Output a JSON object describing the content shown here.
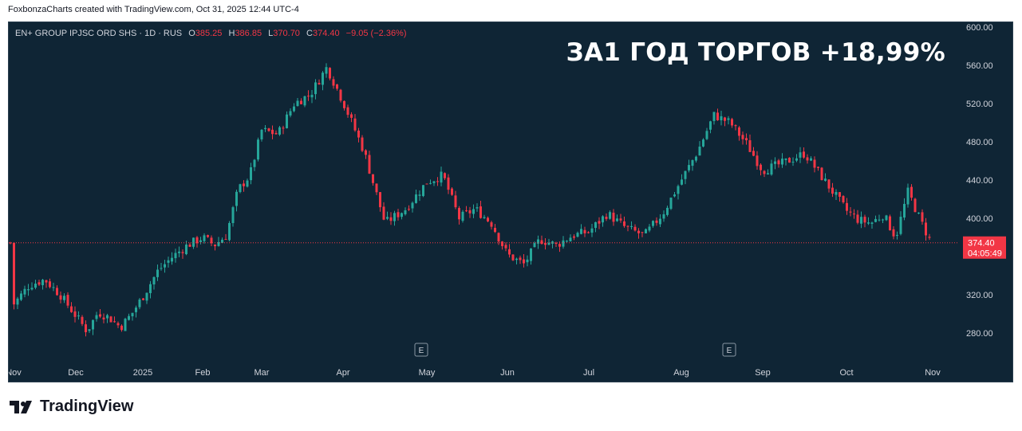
{
  "header": {
    "attribution": "FoxbonzaCharts created with TradingView.com, Oct 31, 2025 12:44 UTC-4"
  },
  "legend": {
    "symbol": "EN+ GROUP IPJSC ORD SHS · 1D · RUS",
    "open_key": "O",
    "open": "385.25",
    "high_key": "H",
    "high": "386.85",
    "low_key": "L",
    "low": "370.70",
    "close_key": "C",
    "close": "374.40",
    "change": "−9.05 (−2.36%)"
  },
  "headline": "ЗА1 ГОД ТОРГОВ +18,99%",
  "price_label": {
    "price": "374.40",
    "countdown": "04:05:49"
  },
  "earnings_marker": "E",
  "footer": {
    "brand": "TradingView"
  },
  "colors": {
    "background": "#0f2535",
    "up": "#26a69a",
    "down": "#f23645",
    "axis_text": "#d1d4dc"
  },
  "chart_data": {
    "type": "candlestick",
    "y_axis": {
      "ticks": [
        "600.00",
        "560.00",
        "520.00",
        "480.00",
        "440.00",
        "400.00",
        "320.00",
        "280.00"
      ],
      "ylim": [
        260,
        600
      ]
    },
    "x_axis": {
      "labels": [
        "Nov",
        "Dec",
        "2025",
        "Feb",
        "Mar",
        "Apr",
        "May",
        "Jun",
        "Jul",
        "Aug",
        "Sep",
        "Oct",
        "Nov"
      ]
    },
    "last_price": 374.4,
    "earnings_events": [
      "May",
      "Aug"
    ],
    "series_close_points": [
      [
        "Nov",
        310
      ],
      [
        "Nov",
        330
      ],
      [
        "Nov",
        336
      ],
      [
        "Nov",
        320
      ],
      [
        "Dec",
        298
      ],
      [
        "Dec",
        282
      ],
      [
        "Dec",
        302
      ],
      [
        "Dec",
        296
      ],
      [
        "Dec",
        286
      ],
      [
        "Dec",
        300
      ],
      [
        "2025",
        318
      ],
      [
        "2025",
        345
      ],
      [
        "2025",
        360
      ],
      [
        "2025",
        372
      ],
      [
        "Feb",
        380
      ],
      [
        "Feb",
        372
      ],
      [
        "Feb",
        382
      ],
      [
        "Feb",
        430
      ],
      [
        "Feb",
        445
      ],
      [
        "Mar",
        492
      ],
      [
        "Mar",
        488
      ],
      [
        "Mar",
        520
      ],
      [
        "Mar",
        530
      ],
      [
        "Mar",
        558
      ],
      [
        "Apr",
        522
      ],
      [
        "Apr",
        470
      ],
      [
        "Apr",
        395
      ],
      [
        "Apr",
        410
      ],
      [
        "May",
        438
      ],
      [
        "May",
        445
      ],
      [
        "May",
        400
      ],
      [
        "May",
        410
      ],
      [
        "May",
        395
      ],
      [
        "Jun",
        362
      ],
      [
        "Jun",
        352
      ],
      [
        "Jun",
        378
      ],
      [
        "Jun",
        372
      ],
      [
        "Jun",
        382
      ],
      [
        "Jul",
        386
      ],
      [
        "Jul",
        405
      ],
      [
        "Jul",
        390
      ],
      [
        "Jul",
        382
      ],
      [
        "Jul",
        405
      ],
      [
        "Aug",
        440
      ],
      [
        "Aug",
        470
      ],
      [
        "Aug",
        508
      ],
      [
        "Aug",
        500
      ],
      [
        "Aug",
        478
      ],
      [
        "Sep",
        450
      ],
      [
        "Sep",
        458
      ],
      [
        "Sep",
        468
      ],
      [
        "Sep",
        438
      ],
      [
        "Oct",
        408
      ],
      [
        "Oct",
        398
      ],
      [
        "Oct",
        395
      ],
      [
        "Oct",
        404
      ],
      [
        "Oct",
        380
      ],
      [
        "Oct",
        428
      ],
      [
        "Oct",
        398
      ],
      [
        "Nov",
        374.4
      ]
    ]
  }
}
